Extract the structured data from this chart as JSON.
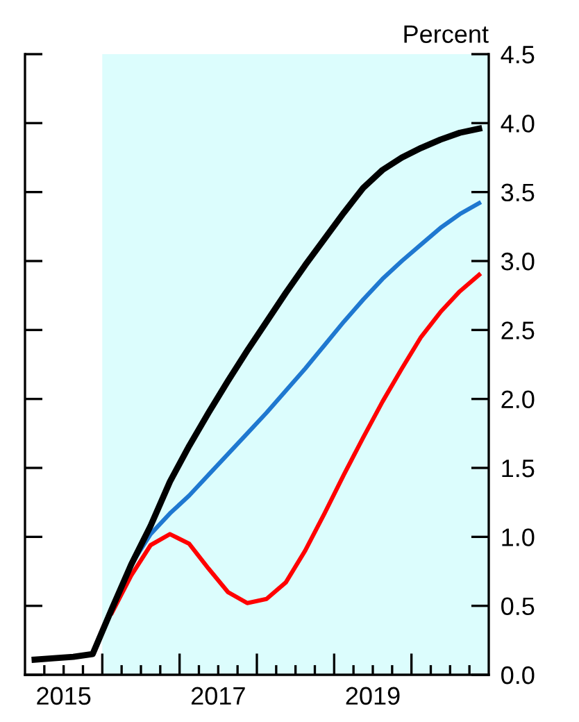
{
  "chart_data": {
    "type": "line",
    "ylabel": "Percent",
    "x": [
      2015.125,
      2015.375,
      2015.625,
      2015.875,
      2016.125,
      2016.375,
      2016.625,
      2016.875,
      2017.125,
      2017.375,
      2017.625,
      2017.875,
      2018.125,
      2018.375,
      2018.625,
      2018.875,
      2019.125,
      2019.375,
      2019.625,
      2019.875,
      2020.125,
      2020.375,
      2020.625,
      2020.875
    ],
    "series": [
      {
        "color": "#1f78d0",
        "x": [
          2016.125,
          2016.375,
          2016.625,
          2016.875,
          2017.125,
          2017.375,
          2017.625,
          2017.875,
          2018.125,
          2018.375,
          2018.625,
          2018.875,
          2019.125,
          2019.375,
          2019.625,
          2019.875,
          2020.125,
          2020.375,
          2020.625,
          2020.875
        ],
        "values": [
          0.48,
          0.8,
          1.02,
          1.17,
          1.3,
          1.45,
          1.6,
          1.75,
          1.9,
          2.06,
          2.22,
          2.39,
          2.56,
          2.72,
          2.87,
          3.0,
          3.12,
          3.24,
          3.34,
          3.42
        ]
      },
      {
        "color": "#ff0000",
        "x": [
          2016.125,
          2016.375,
          2016.625,
          2016.875,
          2017.125,
          2017.375,
          2017.625,
          2017.875,
          2018.125,
          2018.375,
          2018.625,
          2018.875,
          2019.125,
          2019.375,
          2019.625,
          2019.875,
          2020.125,
          2020.375,
          2020.625,
          2020.875
        ],
        "values": [
          0.45,
          0.72,
          0.94,
          1.02,
          0.95,
          0.77,
          0.6,
          0.52,
          0.55,
          0.67,
          0.9,
          1.17,
          1.45,
          1.72,
          1.98,
          2.22,
          2.45,
          2.63,
          2.78,
          2.9
        ]
      },
      {
        "color": "#000000",
        "values": [
          0.11,
          0.12,
          0.13,
          0.15,
          0.48,
          0.8,
          1.08,
          1.4,
          1.66,
          1.9,
          2.13,
          2.35,
          2.56,
          2.77,
          2.97,
          3.16,
          3.35,
          3.53,
          3.66,
          3.75,
          3.82,
          3.88,
          3.93,
          3.96
        ]
      }
    ],
    "xlim": [
      2015,
      2021
    ],
    "xticks": [
      {
        "value": 2015.5,
        "label": "2015"
      },
      {
        "value": 2017.5,
        "label": "2017"
      },
      {
        "value": 2019.5,
        "label": "2019"
      },
      {
        "value": 2015.25,
        "label": null
      },
      {
        "value": 2015.5,
        "label": null
      },
      {
        "value": 2015.75,
        "label": null
      },
      {
        "value": 2016,
        "label": null
      },
      {
        "value": 2016.25,
        "label": null
      },
      {
        "value": 2016.5,
        "label": null
      },
      {
        "value": 2016.75,
        "label": null
      },
      {
        "value": 2017,
        "label": null
      },
      {
        "value": 2017.25,
        "label": null
      },
      {
        "value": 2017.5,
        "label": null
      },
      {
        "value": 2017.75,
        "label": null
      },
      {
        "value": 2018,
        "label": null
      },
      {
        "value": 2018.25,
        "label": null
      },
      {
        "value": 2018.5,
        "label": null
      },
      {
        "value": 2018.75,
        "label": null
      },
      {
        "value": 2019,
        "label": null
      },
      {
        "value": 2019.25,
        "label": null
      },
      {
        "value": 2019.5,
        "label": null
      },
      {
        "value": 2019.75,
        "label": null
      },
      {
        "value": 2020,
        "label": null
      },
      {
        "value": 2020.25,
        "label": null
      },
      {
        "value": 2020.5,
        "label": null
      },
      {
        "value": 2020.75,
        "label": null
      }
    ],
    "ylim": [
      0,
      4.5
    ],
    "yticks": [
      {
        "value": 0,
        "label": "0.0"
      },
      {
        "value": 0.5,
        "label": "0.5"
      },
      {
        "value": 1,
        "label": "1.0"
      },
      {
        "value": 1.5,
        "label": "1.5"
      },
      {
        "value": 2,
        "label": "2.0"
      },
      {
        "value": 2.5,
        "label": "2.5"
      },
      {
        "value": 3,
        "label": "3.0"
      },
      {
        "value": 3.5,
        "label": "3.5"
      },
      {
        "value": 4,
        "label": "4.0"
      },
      {
        "value": 4.5,
        "label": "4.5"
      }
    ],
    "bands": [
      {
        "axis": "x",
        "from": 2016,
        "to": 2021,
        "color": "#dcfdfd"
      }
    ],
    "grid": false,
    "legend": false,
    "marker": "none",
    "line_style": "solid"
  }
}
